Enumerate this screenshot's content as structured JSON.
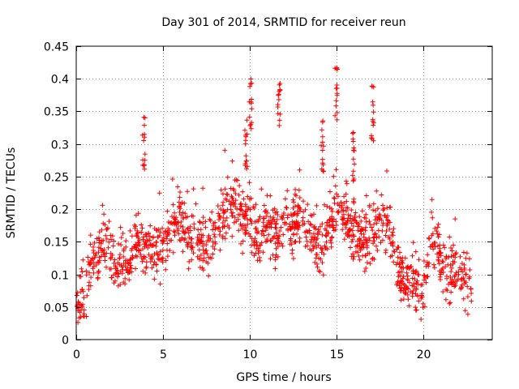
{
  "chart_data": {
    "type": "scatter",
    "title": "Day 301 of 2014, SRMTID for receiver reun",
    "xlabel": "GPS time / hours",
    "ylabel": "SRMTID / TECUs",
    "xlim": [
      0,
      24
    ],
    "ylim": [
      0,
      0.45
    ],
    "x_ticks": [
      0,
      5,
      10,
      15,
      20
    ],
    "x_tick_labels": [
      "0",
      "5",
      "10",
      "15",
      "20"
    ],
    "y_ticks": [
      0,
      0.05,
      0.1,
      0.15,
      0.2,
      0.25,
      0.3,
      0.35,
      0.4,
      0.45
    ],
    "y_tick_labels": [
      "0",
      "0.05",
      "0.1",
      "0.15",
      "0.2",
      "0.25",
      "0.3",
      "0.35",
      "0.4",
      "0.45"
    ],
    "grid": true,
    "marker": "+",
    "color": "#ff0000",
    "series": [
      {
        "name": "SRMTID",
        "trend": {
          "x": [
            0,
            0.3,
            0.6,
            1.0,
            1.5,
            2.0,
            2.5,
            3.0,
            3.5,
            4.0,
            4.5,
            5.0,
            5.5,
            6.0,
            6.5,
            7.0,
            7.5,
            8.0,
            8.5,
            9.0,
            9.5,
            10.0,
            10.5,
            11.0,
            11.5,
            12.0,
            12.5,
            13.0,
            13.5,
            14.0,
            14.5,
            15.0,
            15.5,
            16.0,
            16.5,
            17.0,
            17.5,
            18.0,
            18.5,
            19.0,
            19.5,
            20.0,
            20.5,
            21.0,
            21.5,
            22.0,
            22.5,
            22.8
          ],
          "y": [
            0.05,
            0.06,
            0.08,
            0.13,
            0.15,
            0.12,
            0.12,
            0.11,
            0.16,
            0.14,
            0.13,
            0.14,
            0.17,
            0.19,
            0.15,
            0.15,
            0.13,
            0.16,
            0.19,
            0.21,
            0.19,
            0.18,
            0.15,
            0.17,
            0.16,
            0.18,
            0.17,
            0.19,
            0.16,
            0.14,
            0.17,
            0.2,
            0.19,
            0.17,
            0.15,
            0.16,
            0.18,
            0.17,
            0.12,
            0.09,
            0.09,
            0.08,
            0.15,
            0.12,
            0.1,
            0.11,
            0.09,
            0.07
          ]
        },
        "spread": 0.045,
        "point_count": 1400,
        "peaks": [
          {
            "x": 3.9,
            "y": 0.35
          },
          {
            "x": 10.05,
            "y": 0.405
          },
          {
            "x": 11.7,
            "y": 0.395
          },
          {
            "x": 15.0,
            "y": 0.42
          },
          {
            "x": 17.1,
            "y": 0.39
          },
          {
            "x": 9.8,
            "y": 0.34
          },
          {
            "x": 14.2,
            "y": 0.34
          },
          {
            "x": 16.0,
            "y": 0.33
          }
        ]
      }
    ]
  }
}
